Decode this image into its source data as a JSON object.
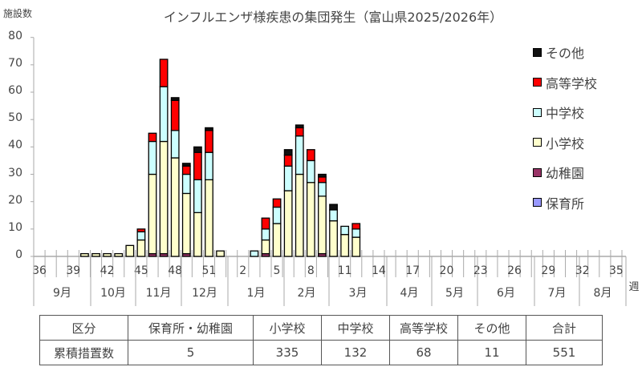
{
  "chart": {
    "title": "インフルエンザ様疾患の集団発生（富山県2025/2026年）",
    "ylabel": "施設数",
    "xunit": "週",
    "yticks": [
      "0",
      "10",
      "20",
      "30",
      "40",
      "50",
      "60",
      "70",
      "80"
    ]
  },
  "chart_data": {
    "type": "bar",
    "stacked": true,
    "title": "インフルエンザ様疾患の集団発生（富山県2025/2026年）",
    "xlabel": "週",
    "ylabel": "施設数",
    "ylim": [
      0,
      80
    ],
    "grid": false,
    "legend_position": "right",
    "x": [
      36,
      37,
      38,
      39,
      40,
      41,
      42,
      43,
      44,
      45,
      46,
      47,
      48,
      49,
      50,
      51,
      52,
      1,
      2,
      3,
      4,
      5,
      6,
      7,
      8,
      9,
      10,
      11,
      12,
      13,
      14,
      15,
      16,
      17,
      18,
      19,
      20,
      21,
      22,
      23,
      24,
      25,
      26,
      27,
      28,
      29,
      30,
      31,
      32,
      33,
      34,
      35
    ],
    "x_tick_labels": [
      "36",
      "39",
      "42",
      "45",
      "48",
      "51",
      "2",
      "5",
      "8",
      "11",
      "14",
      "17",
      "20",
      "23",
      "26",
      "29",
      "32",
      "35"
    ],
    "months": [
      "9月",
      "10月",
      "11月",
      "12月",
      "1月",
      "2月",
      "3月",
      "4月",
      "5月",
      "6月",
      "7月",
      "8月"
    ],
    "series": [
      {
        "name": "保育所",
        "color": "#9999ff",
        "values": [
          0,
          0,
          0,
          0,
          0,
          0,
          0,
          0,
          0,
          0,
          0,
          0,
          0,
          0,
          0,
          0,
          0,
          0,
          0,
          0,
          0,
          0,
          0,
          0,
          0,
          0,
          0,
          0,
          0,
          0,
          0,
          0,
          0,
          0,
          0,
          0,
          0,
          0,
          0,
          0,
          0,
          0,
          0,
          0,
          0,
          0,
          0,
          0,
          0,
          0,
          0,
          0
        ]
      },
      {
        "name": "幼稚園",
        "color": "#993366",
        "values": [
          0,
          0,
          0,
          0,
          0,
          0,
          0,
          0,
          0,
          0,
          1,
          1,
          0,
          1,
          0,
          0,
          0,
          0,
          0,
          0,
          1,
          0,
          0,
          0,
          0,
          1,
          0,
          0,
          0,
          0,
          0,
          0,
          0,
          0,
          0,
          0,
          0,
          0,
          0,
          0,
          0,
          0,
          0,
          0,
          0,
          0,
          0,
          0,
          0,
          0,
          0,
          0
        ]
      },
      {
        "name": "小学校",
        "color": "#ffffcc",
        "values": [
          0,
          0,
          0,
          0,
          1,
          1,
          1,
          1,
          4,
          6,
          29,
          41,
          36,
          22,
          16,
          28,
          2,
          0,
          0,
          0,
          5,
          12,
          24,
          30,
          27,
          21,
          13,
          8,
          7,
          0,
          0,
          0,
          0,
          0,
          0,
          0,
          0,
          0,
          0,
          0,
          0,
          0,
          0,
          0,
          0,
          0,
          0,
          0,
          0,
          0,
          0,
          0
        ]
      },
      {
        "name": "中学校",
        "color": "#ccffff",
        "values": [
          0,
          0,
          0,
          0,
          0,
          0,
          0,
          0,
          0,
          3,
          12,
          20,
          10,
          7,
          12,
          10,
          0,
          0,
          0,
          2,
          4,
          6,
          9,
          14,
          8,
          5,
          4,
          3,
          3,
          0,
          0,
          0,
          0,
          0,
          0,
          0,
          0,
          0,
          0,
          0,
          0,
          0,
          0,
          0,
          0,
          0,
          0,
          0,
          0,
          0,
          0,
          0
        ]
      },
      {
        "name": "高等学校",
        "color": "#ff0000",
        "values": [
          0,
          0,
          0,
          0,
          0,
          0,
          0,
          0,
          0,
          1,
          3,
          10,
          11,
          3,
          10,
          8,
          0,
          0,
          0,
          0,
          4,
          3,
          4,
          3,
          4,
          2,
          0,
          0,
          2,
          0,
          0,
          0,
          0,
          0,
          0,
          0,
          0,
          0,
          0,
          0,
          0,
          0,
          0,
          0,
          0,
          0,
          0,
          0,
          0,
          0,
          0,
          0
        ]
      },
      {
        "name": "その他",
        "color": "#111111",
        "values": [
          0,
          0,
          0,
          0,
          0,
          0,
          0,
          0,
          0,
          0,
          0,
          0,
          1,
          1,
          2,
          1,
          0,
          0,
          0,
          0,
          0,
          0,
          2,
          1,
          0,
          1,
          2,
          0,
          0,
          0,
          0,
          0,
          0,
          0,
          0,
          0,
          0,
          0,
          0,
          0,
          0,
          0,
          0,
          0,
          0,
          0,
          0,
          0,
          0,
          0,
          0,
          0
        ]
      }
    ]
  },
  "legend": [
    {
      "label": "その他",
      "color": "#111111"
    },
    {
      "label": "高等学校",
      "color": "#ff0000"
    },
    {
      "label": "中学校",
      "color": "#ccffff"
    },
    {
      "label": "小学校",
      "color": "#ffffcc"
    },
    {
      "label": "幼稚園",
      "color": "#993366"
    },
    {
      "label": "保育所",
      "color": "#9999ff"
    }
  ],
  "summary_table": {
    "headers": [
      "区分",
      "保育所・幼稚園",
      "小学校",
      "中学校",
      "高等学校",
      "その他",
      "合計"
    ],
    "row_label": "累積措置数",
    "values": [
      "5",
      "335",
      "132",
      "68",
      "11",
      "551"
    ]
  }
}
